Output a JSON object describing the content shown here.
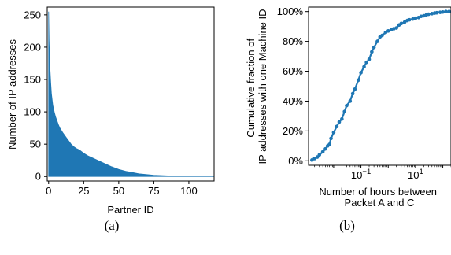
{
  "panels": {
    "a": {
      "caption": "(a)"
    },
    "b": {
      "caption": "(b)"
    }
  },
  "colors": {
    "series": "#1f77b4",
    "axis": "#000000",
    "background": "#ffffff"
  },
  "chart_data": [
    {
      "id": "a",
      "type": "area",
      "title": "",
      "xlabel": "Partner ID",
      "ylabel": "Number of IP addresses",
      "xlim": [
        -1,
        118
      ],
      "ylim": [
        -7,
        262
      ],
      "xticks": [
        0,
        25,
        50,
        75,
        100
      ],
      "yticks": [
        0,
        50,
        100,
        150,
        200,
        250
      ],
      "grid": false,
      "legend": "none",
      "series": [
        {
          "x": [
            0,
            0.3,
            0.6,
            1,
            1.5,
            2,
            3,
            4,
            5,
            6,
            7,
            8,
            10,
            12,
            14,
            16,
            18,
            20,
            22,
            25,
            28,
            30,
            35,
            40,
            45,
            50,
            55,
            60,
            65,
            70,
            75,
            80,
            85,
            90,
            100,
            110,
            118
          ],
          "y": [
            255,
            210,
            190,
            165,
            145,
            128,
            110,
            100,
            92,
            86,
            80,
            75,
            68,
            62,
            56,
            50,
            46,
            43,
            41,
            36,
            32,
            30,
            25,
            20,
            15,
            11,
            8,
            6,
            4,
            3,
            2,
            1.5,
            1,
            0.8,
            0.5,
            0.3,
            0.2
          ]
        }
      ]
    },
    {
      "id": "b",
      "type": "line",
      "title": "",
      "xlabel": "Number of hours between\nPacket A and C",
      "ylabel": "Cumulative fraction of\nIP addresses with one Machine ID",
      "xscale": "log",
      "xlim": [
        0.0012,
        200
      ],
      "ylim": [
        -3,
        103
      ],
      "xticks": [
        {
          "value": 0.1,
          "label": "10^-1"
        },
        {
          "value": 10,
          "label": "10^1"
        }
      ],
      "yticks": [
        0,
        20,
        40,
        60,
        80,
        100
      ],
      "ytick_suffix": "%",
      "grid": false,
      "legend": "none",
      "series": [
        {
          "x": [
            0.0016,
            0.002,
            0.0025,
            0.003,
            0.004,
            0.005,
            0.006,
            0.007,
            0.008,
            0.01,
            0.013,
            0.016,
            0.02,
            0.025,
            0.03,
            0.04,
            0.05,
            0.06,
            0.08,
            0.1,
            0.13,
            0.16,
            0.2,
            0.25,
            0.3,
            0.4,
            0.5,
            0.6,
            0.8,
            1,
            1.3,
            1.6,
            2,
            2.5,
            3,
            4,
            5,
            6,
            8,
            10,
            13,
            16,
            20,
            25,
            30,
            40,
            50,
            60,
            80,
            100,
            130,
            170
          ],
          "y": [
            0.5,
            1.5,
            2.5,
            4,
            6,
            8,
            10,
            11,
            15,
            19,
            23,
            26,
            28,
            33,
            37,
            40,
            45,
            48,
            54,
            59,
            63,
            66,
            68,
            73,
            76,
            80,
            83,
            84,
            86,
            87,
            88,
            88.5,
            89,
            91,
            92,
            93,
            94,
            94.5,
            95,
            95.5,
            96,
            96.8,
            97.2,
            97.8,
            98.2,
            98.6,
            99,
            99.2,
            99.5,
            99.7,
            100,
            100
          ]
        }
      ]
    }
  ]
}
